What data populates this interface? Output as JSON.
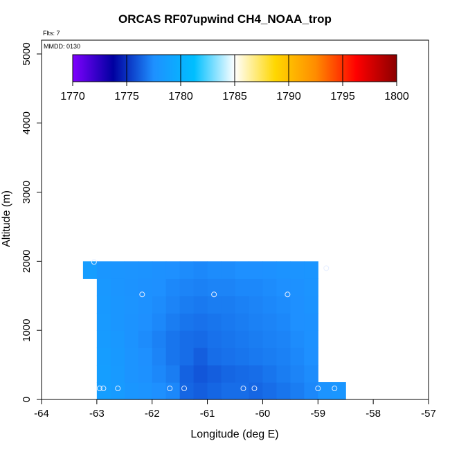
{
  "chart_data": {
    "type": "heatmap",
    "title": "ORCAS RF07upwind CH4_NOAA_trop",
    "flights_label": "Flts: 7",
    "mmdd_label": "MMDD: 0130",
    "xlabel": "Longitude (deg E)",
    "ylabel": "Altitude (m)",
    "xlim": [
      -64,
      -57
    ],
    "ylim": [
      0,
      5200
    ],
    "xticks": [
      -64,
      -63,
      -62,
      -61,
      -60,
      -59,
      -58,
      -57
    ],
    "yticks": [
      0,
      1000,
      2000,
      3000,
      4000,
      5000
    ],
    "colorbar": {
      "range": [
        1770,
        1800
      ],
      "ticks": [
        1770,
        1775,
        1780,
        1785,
        1790,
        1795,
        1800
      ],
      "colors": [
        "#7F00FF",
        "#0000A0",
        "#1E90FF",
        "#00BFFF",
        "#FFFFFF",
        "#FFD700",
        "#FF8C00",
        "#FF0000",
        "#8B0000"
      ]
    },
    "grid_lon_edges": [
      -63.25,
      -63.0,
      -62.75,
      -62.5,
      -62.25,
      -62.0,
      -61.75,
      -61.5,
      -61.25,
      -61.0,
      -60.75,
      -60.5,
      -60.25,
      -60.0,
      -59.75,
      -59.5,
      -59.25,
      -59.0,
      -58.75,
      -58.5
    ],
    "grid_alt_edges": [
      0,
      250,
      500,
      750,
      1000,
      1250,
      1500,
      1750,
      2000
    ],
    "cells": [
      [
        null,
        1778.6,
        1778.4,
        1778.0,
        1777.8,
        1777.5,
        1777.3,
        1776.4,
        1776.2,
        1776.4,
        1776.6,
        1776.6,
        1776.4,
        1776.6,
        1776.8,
        1777.0,
        1777.3,
        1777.8,
        1778.0
      ],
      [
        null,
        1778.6,
        1778.3,
        1777.8,
        1777.6,
        1777.3,
        1777.0,
        1776.3,
        1776.0,
        1776.2,
        1776.4,
        1776.5,
        1776.6,
        1776.8,
        1777.0,
        1777.2,
        1777.4,
        null,
        null
      ],
      [
        null,
        1778.5,
        1778.2,
        1777.8,
        1777.5,
        1777.2,
        1776.8,
        1776.6,
        1776.2,
        1776.6,
        1776.7,
        1776.8,
        1776.9,
        1777.0,
        1777.1,
        1777.3,
        1777.5,
        null,
        null
      ],
      [
        null,
        1778.4,
        1778.1,
        1777.7,
        1777.4,
        1777.1,
        1776.8,
        1776.6,
        1776.5,
        1776.7,
        1776.8,
        1776.9,
        1777.0,
        1777.1,
        1777.2,
        1777.4,
        1777.6,
        null,
        null
      ],
      [
        null,
        1778.3,
        1778.0,
        1777.7,
        1777.5,
        1777.3,
        1777.0,
        1776.8,
        1776.7,
        1776.8,
        1776.9,
        1777.0,
        1777.1,
        1777.2,
        1777.3,
        1777.5,
        1777.6,
        null,
        null
      ],
      [
        null,
        1778.2,
        1778.0,
        1777.8,
        1777.6,
        1777.4,
        1777.2,
        1777.0,
        1776.9,
        1777.0,
        1777.0,
        1777.1,
        1777.2,
        1777.3,
        1777.4,
        1777.5,
        1777.7,
        null,
        null
      ],
      [
        null,
        1778.1,
        1777.9,
        1777.7,
        1777.6,
        1777.5,
        1777.3,
        1777.2,
        1777.1,
        1777.2,
        1777.2,
        1777.3,
        1777.3,
        1777.4,
        1777.5,
        1777.6,
        1777.8,
        null,
        null
      ],
      [
        1778.5,
        1778.0,
        1777.9,
        1777.8,
        1777.7,
        1777.6,
        1777.5,
        1777.4,
        1777.3,
        1777.4,
        1777.4,
        1777.5,
        1777.5,
        1777.6,
        1777.7,
        1777.8,
        1777.9,
        null,
        null
      ]
    ],
    "sample_points": [
      {
        "lon": -62.95,
        "alt": 160
      },
      {
        "lon": -62.88,
        "alt": 160
      },
      {
        "lon": -62.62,
        "alt": 160
      },
      {
        "lon": -61.68,
        "alt": 160
      },
      {
        "lon": -61.42,
        "alt": 160
      },
      {
        "lon": -60.35,
        "alt": 160
      },
      {
        "lon": -60.15,
        "alt": 160
      },
      {
        "lon": -59.0,
        "alt": 160
      },
      {
        "lon": -58.7,
        "alt": 160
      },
      {
        "lon": -62.18,
        "alt": 1520
      },
      {
        "lon": -60.88,
        "alt": 1520
      },
      {
        "lon": -59.55,
        "alt": 1520
      },
      {
        "lon": -63.05,
        "alt": 1990
      },
      {
        "lon": -58.85,
        "alt": 1900
      }
    ]
  }
}
